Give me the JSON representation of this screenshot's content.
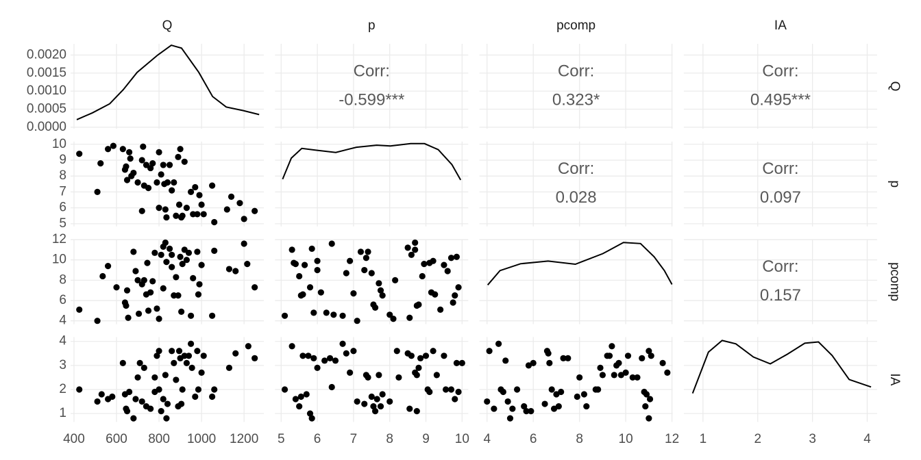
{
  "chart_data": {
    "type": "pairs",
    "variables": [
      "Q",
      "p",
      "pcomp",
      "IA"
    ],
    "scales": [
      {
        "lim": [
          384,
          1293
        ],
        "ticks": [
          400,
          600,
          800,
          1000,
          1200
        ]
      },
      {
        "lim": [
          4.83,
          10.17
        ],
        "ticks": [
          5,
          6,
          7,
          8,
          9,
          10
        ]
      },
      {
        "lim": [
          3.67,
          12.03
        ],
        "ticks": [
          4,
          6,
          8,
          10,
          12
        ]
      },
      {
        "lim": [
          0.65,
          4.18
        ],
        "ticks": [
          1,
          2,
          3,
          4
        ]
      }
    ],
    "point_color": "#000000",
    "line_color": "#000000",
    "grid": true,
    "diagonal": [
      {
        "x": [
          413,
          487,
          568,
          632,
          697,
          794,
          858,
          906,
          987,
          1052,
          1116,
          1197,
          1271
        ],
        "y": [
          0.00021,
          0.0004,
          0.00065,
          0.00104,
          0.00152,
          0.002,
          0.00227,
          0.00219,
          0.00152,
          0.00085,
          0.00056,
          0.00046,
          0.00035
        ],
        "ylim": [
          -4e-05,
          0.00231
        ],
        "yticks": [
          {
            "value": 0,
            "label": "0.0000"
          },
          {
            "value": 0.0005,
            "label": "0.0005"
          },
          {
            "value": 0.001,
            "label": "0.0010"
          },
          {
            "value": 0.0015,
            "label": "0.0015"
          },
          {
            "value": 0.002,
            "label": "0.0020"
          }
        ]
      },
      {
        "x": [
          5.04,
          5.28,
          5.57,
          5.94,
          6.51,
          7.08,
          7.64,
          8.02,
          8.58,
          8.96,
          9.34,
          9.72,
          9.96
        ],
        "y": [
          0.117,
          0.169,
          0.193,
          0.189,
          0.183,
          0.196,
          0.201,
          0.199,
          0.205,
          0.205,
          0.19,
          0.153,
          0.115
        ],
        "ylim": [
          0,
          0.21
        ]
      },
      {
        "x": [
          4.03,
          4.56,
          5.45,
          6.64,
          7.82,
          9.01,
          9.9,
          10.64,
          11.23,
          11.67,
          12.0
        ],
        "y": [
          0.074,
          0.101,
          0.114,
          0.119,
          0.113,
          0.133,
          0.154,
          0.152,
          0.127,
          0.101,
          0.075
        ],
        "ylim": [
          0,
          0.16
        ]
      },
      {
        "x": [
          0.81,
          1.1,
          1.35,
          1.6,
          1.92,
          2.23,
          2.54,
          2.86,
          3.11,
          3.36,
          3.67,
          4.07
        ],
        "y": [
          0.135,
          0.329,
          0.384,
          0.368,
          0.306,
          0.274,
          0.319,
          0.371,
          0.377,
          0.313,
          0.2,
          0.165
        ],
        "ylim": [
          0,
          0.4
        ]
      }
    ],
    "upper": [
      {
        "label": "Corr:",
        "value": "-0.599***"
      },
      {
        "label": "Corr:",
        "value": "0.323*"
      },
      {
        "label": "Corr:",
        "value": "0.495***"
      },
      {
        "label": "Corr:",
        "value": "0.028"
      },
      {
        "label": "Corr:",
        "value": "0.097"
      },
      {
        "label": "Corr:",
        "value": "0.157"
      }
    ],
    "lower": [
      {
        "x": [
          425,
          510,
          525,
          560,
          585,
          630,
          640,
          645,
          650,
          660,
          665,
          670,
          680,
          700,
          720,
          725,
          730,
          740,
          750,
          760,
          770,
          790,
          800,
          810,
          820,
          825,
          830,
          835,
          840,
          850,
          860,
          870,
          880,
          890,
          895,
          900,
          905,
          910,
          920,
          930,
          950,
          960,
          970,
          980,
          990,
          1000,
          1010,
          1050,
          1060,
          1120,
          1140,
          1180,
          1200,
          1250,
          720,
          800
        ],
        "y": [
          9.4,
          7.0,
          8.8,
          9.7,
          9.9,
          9.7,
          8.4,
          8.6,
          7.75,
          9.5,
          9.1,
          8.0,
          8.2,
          7.6,
          9.0,
          9.85,
          7.4,
          8.7,
          7.25,
          8.5,
          8.8,
          7.6,
          9.5,
          8.1,
          8.7,
          7.5,
          5.9,
          5.4,
          7.6,
          8.7,
          7.1,
          7.6,
          5.5,
          9.2,
          6.2,
          9.7,
          5.4,
          5.5,
          8.9,
          6.0,
          7.0,
          5.6,
          7.3,
          5.6,
          6.8,
          6.2,
          5.6,
          7.4,
          5.1,
          5.9,
          6.7,
          6.3,
          5.3,
          5.8,
          5.8,
          6.0
        ]
      },
      {
        "x": [
          425,
          510,
          535,
          560,
          600,
          640,
          645,
          650,
          655,
          680,
          690,
          700,
          705,
          720,
          730,
          740,
          745,
          750,
          760,
          770,
          780,
          790,
          800,
          810,
          820,
          830,
          835,
          850,
          860,
          870,
          880,
          890,
          900,
          905,
          910,
          920,
          930,
          940,
          950,
          960,
          980,
          985,
          990,
          1000,
          1050,
          1060,
          1130,
          1160,
          1200,
          1215,
          1250,
          860,
          820
        ],
        "y": [
          5.1,
          4.0,
          8.4,
          9.4,
          7.3,
          5.8,
          5.5,
          7.0,
          4.3,
          10.8,
          8.9,
          8.0,
          4.7,
          7.6,
          8.0,
          6.6,
          9.7,
          5.0,
          6.8,
          7.9,
          10.7,
          5.2,
          4.2,
          10.5,
          11.3,
          11.7,
          9.8,
          11.1,
          9.3,
          6.5,
          8.3,
          6.5,
          10.3,
          4.9,
          9.6,
          11.0,
          10.0,
          10.7,
          4.5,
          8.2,
          10.8,
          6.6,
          7.6,
          9.5,
          4.5,
          10.9,
          9.1,
          8.9,
          11.6,
          9.6,
          7.3,
          10.5,
          7.2
        ]
      },
      {
        "x": [
          5.1,
          5.3,
          5.35,
          5.4,
          5.5,
          5.55,
          5.6,
          5.65,
          5.8,
          5.85,
          5.9,
          6.0,
          6.1,
          6.25,
          6.4,
          6.45,
          6.7,
          6.8,
          6.9,
          7.0,
          7.1,
          7.2,
          7.3,
          7.35,
          7.4,
          7.5,
          7.55,
          7.6,
          7.7,
          7.75,
          7.8,
          8.0,
          8.1,
          8.15,
          8.5,
          8.55,
          8.6,
          8.7,
          8.75,
          8.8,
          8.9,
          8.95,
          9.1,
          9.15,
          9.2,
          9.25,
          9.4,
          9.5,
          9.6,
          9.7,
          9.75,
          9.8,
          9.85,
          9.9,
          8.7,
          6.0
        ],
        "y": [
          4.5,
          11.0,
          9.7,
          9.6,
          8.4,
          6.5,
          6.6,
          9.5,
          7.3,
          11.1,
          4.8,
          9.0,
          6.8,
          4.8,
          11.6,
          4.6,
          4.5,
          8.7,
          9.9,
          6.7,
          4.0,
          10.8,
          9.0,
          10.2,
          10.8,
          8.7,
          5.6,
          5.3,
          7.7,
          7.0,
          6.5,
          4.6,
          4.2,
          8.0,
          11.2,
          4.3,
          10.5,
          11.7,
          5.5,
          5.6,
          8.4,
          9.6,
          9.7,
          6.8,
          9.9,
          6.6,
          5.1,
          9.5,
          8.9,
          10.2,
          5.8,
          6.5,
          10.3,
          7.3,
          11.0,
          9.9
        ]
      },
      {
        "x": [
          425,
          510,
          530,
          560,
          580,
          630,
          640,
          645,
          650,
          660,
          680,
          690,
          700,
          710,
          720,
          730,
          740,
          760,
          780,
          790,
          800,
          810,
          820,
          830,
          835,
          840,
          860,
          870,
          880,
          890,
          895,
          900,
          905,
          910,
          920,
          930,
          940,
          950,
          955,
          970,
          980,
          985,
          1000,
          1010,
          1050,
          1060,
          1130,
          1160,
          1220,
          1250,
          800,
          780
        ],
        "y": [
          2.0,
          1.5,
          1.8,
          1.6,
          1.7,
          3.1,
          1.8,
          1.2,
          1.1,
          1.9,
          0.8,
          1.6,
          2.5,
          3.1,
          1.5,
          2.9,
          1.3,
          1.2,
          2.5,
          3.4,
          3.6,
          1.1,
          1.6,
          2.6,
          0.8,
          1.4,
          3.6,
          3.1,
          2.4,
          1.3,
          3.6,
          3.3,
          1.4,
          2.0,
          3.4,
          3.1,
          3.4,
          3.9,
          2.9,
          1.7,
          3.6,
          2.0,
          2.7,
          3.4,
          1.7,
          2.0,
          2.9,
          3.5,
          3.8,
          3.3,
          2.0,
          1.9
        ]
      },
      {
        "x": [
          5.1,
          5.3,
          5.4,
          5.5,
          5.55,
          5.6,
          5.7,
          5.75,
          5.8,
          5.85,
          5.9,
          6.0,
          6.2,
          6.35,
          6.4,
          6.5,
          6.7,
          6.8,
          6.9,
          7.0,
          7.1,
          7.3,
          7.35,
          7.4,
          7.5,
          7.55,
          7.6,
          7.65,
          7.7,
          7.75,
          7.8,
          8.0,
          8.2,
          8.25,
          8.5,
          8.55,
          8.6,
          8.7,
          8.75,
          8.8,
          8.85,
          9.0,
          9.05,
          9.1,
          9.2,
          9.3,
          9.5,
          9.55,
          9.7,
          9.8,
          9.85,
          9.9,
          10.0,
          8.75
        ],
        "y": [
          2.0,
          3.8,
          1.6,
          1.3,
          1.7,
          3.4,
          1.8,
          3.4,
          1.0,
          0.8,
          3.3,
          2.9,
          3.2,
          3.3,
          2.1,
          3.2,
          3.9,
          3.5,
          2.7,
          3.6,
          1.5,
          1.4,
          2.6,
          2.5,
          1.7,
          1.3,
          1.1,
          1.6,
          2.6,
          1.3,
          1.8,
          1.5,
          3.6,
          2.5,
          3.5,
          1.2,
          3.4,
          2.7,
          1.1,
          2.9,
          3.3,
          3.4,
          2.0,
          1.9,
          3.6,
          2.6,
          3.4,
          2.0,
          2.0,
          1.6,
          3.1,
          1.9,
          3.1,
          2.6
        ]
      },
      {
        "x": [
          4.0,
          4.1,
          4.3,
          4.5,
          4.6,
          4.7,
          4.8,
          4.9,
          5.0,
          5.1,
          5.3,
          5.6,
          5.7,
          5.8,
          5.9,
          6.0,
          6.5,
          6.6,
          6.65,
          6.7,
          6.8,
          6.9,
          7.0,
          7.1,
          7.2,
          7.3,
          7.5,
          7.9,
          8.0,
          8.2,
          8.3,
          8.7,
          8.8,
          8.9,
          9.0,
          9.2,
          9.3,
          9.4,
          9.5,
          9.6,
          9.7,
          9.8,
          10.0,
          10.1,
          10.3,
          10.5,
          10.7,
          10.8,
          10.85,
          10.9,
          11.0,
          11.05,
          11.1,
          11.6,
          11.8,
          11.0
        ],
        "y": [
          1.5,
          3.6,
          1.2,
          3.9,
          2.0,
          1.9,
          3.2,
          1.5,
          0.8,
          1.2,
          2.0,
          1.3,
          1.1,
          3.0,
          1.1,
          3.1,
          1.4,
          3.6,
          3.5,
          3.1,
          2.0,
          1.2,
          1.8,
          1.3,
          1.9,
          3.3,
          3.3,
          1.7,
          2.5,
          1.8,
          1.3,
          2.0,
          2.0,
          2.9,
          2.6,
          3.4,
          3.4,
          3.8,
          2.6,
          3.0,
          3.1,
          2.6,
          2.7,
          3.4,
          2.5,
          2.5,
          3.3,
          1.9,
          1.3,
          1.8,
          3.6,
          1.6,
          3.4,
          3.1,
          2.7,
          0.8
        ]
      }
    ]
  }
}
